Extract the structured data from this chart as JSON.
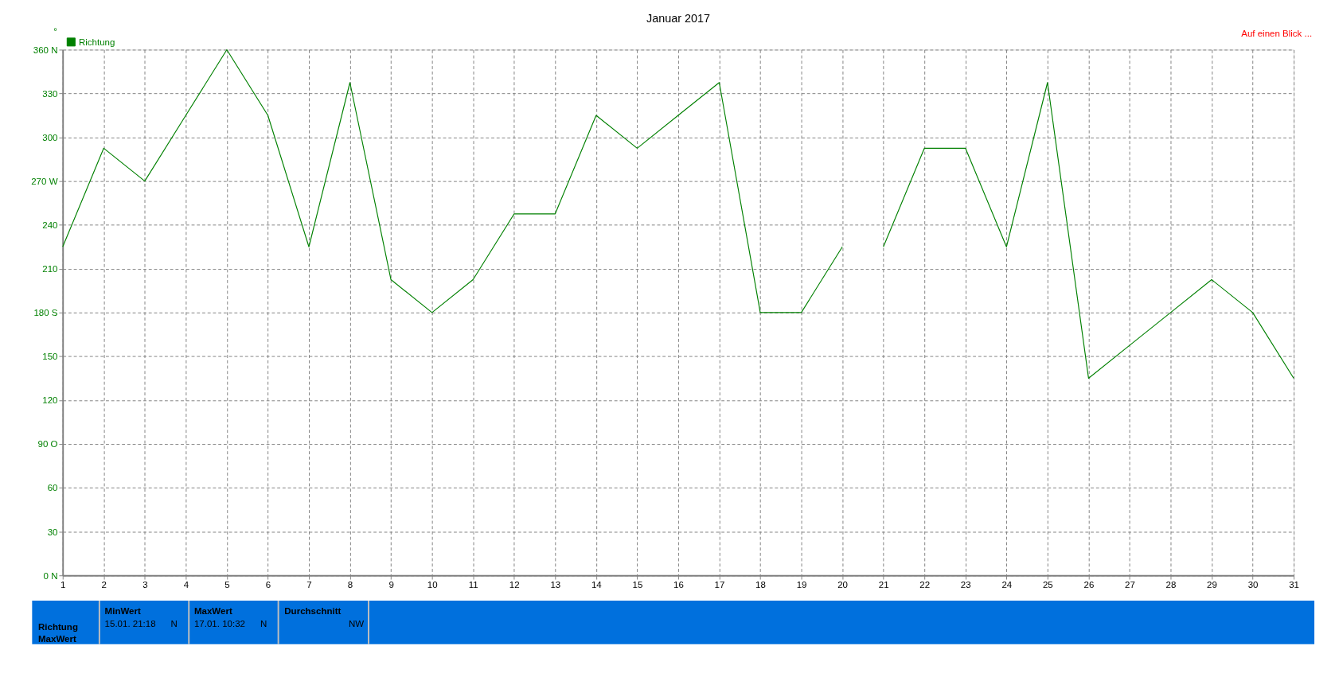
{
  "chart_data": {
    "type": "line",
    "title": "Januar 2017",
    "ylabel": "°",
    "x": [
      1,
      2,
      3,
      4,
      5,
      6,
      7,
      8,
      9,
      10,
      11,
      12,
      13,
      14,
      15,
      16,
      17,
      18,
      19,
      20,
      20.5,
      21,
      22,
      23,
      24,
      25,
      26,
      27,
      28,
      29,
      30,
      31
    ],
    "series": [
      {
        "name": "Richtung",
        "color": "#008000",
        "values": [
          225,
          292.5,
          270,
          315,
          360,
          315,
          225,
          337.5,
          202.5,
          180,
          202.5,
          247.5,
          247.5,
          315,
          292.5,
          315,
          337.5,
          180,
          180,
          225,
          null,
          225,
          292.5,
          292.5,
          225,
          337.5,
          135,
          157.5,
          180,
          202.5,
          180,
          135
        ]
      }
    ],
    "xlim": [
      1,
      31
    ],
    "xticks": [
      1,
      2,
      3,
      4,
      5,
      6,
      7,
      8,
      9,
      10,
      11,
      12,
      13,
      14,
      15,
      16,
      17,
      18,
      19,
      20,
      21,
      22,
      23,
      24,
      25,
      26,
      27,
      28,
      29,
      30,
      31
    ],
    "ylim": [
      0,
      360
    ],
    "yticks": [
      {
        "value": 0,
        "label": "0   N"
      },
      30,
      60,
      {
        "value": 90,
        "label": "90  O"
      },
      120,
      150,
      {
        "value": 180,
        "label": "180 S"
      },
      210,
      240,
      {
        "value": 270,
        "label": "270 W"
      },
      300,
      330,
      {
        "value": 360,
        "label": "360 N"
      }
    ],
    "grid": true,
    "legend": "top left",
    "marker": "none",
    "line_style": "solid",
    "annotations": [
      "Auf einen Blick ...",
      "Richtung",
      "MaxWert",
      "MinWert",
      "15.01.  21:18",
      "N",
      "MaxWert",
      "17.01.  10:32",
      "N",
      "Durchschnitt",
      "NW"
    ]
  }
}
